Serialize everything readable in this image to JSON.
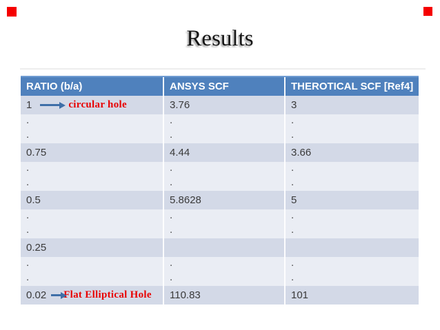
{
  "slide": {
    "title": "Results",
    "background": "#ffffff"
  },
  "markers": {
    "color": "#f50000"
  },
  "table": {
    "columns": [
      "RATIO (b/a)",
      "ANSYS SCF",
      "THEROTICAL SCF [Ref4]"
    ],
    "colors": {
      "header_bg": "#4f81bd",
      "header_text": "#ffffff",
      "band_dark": "#d3d9e7",
      "band_light": "#eaedf4",
      "cell_text": "#3a3a3a"
    },
    "annotation_color": "#e80000",
    "arrow_color": "#3e6fa8",
    "dot_char": ".",
    "rows": [
      {
        "kind": "value",
        "cells": [
          "1",
          "3.76",
          "3"
        ],
        "annotation": {
          "arrow": "long",
          "label": "circular hole"
        }
      },
      {
        "kind": "dots"
      },
      {
        "kind": "value",
        "cells": [
          "0.75",
          "4.44",
          "3.66"
        ]
      },
      {
        "kind": "dots"
      },
      {
        "kind": "value",
        "cells": [
          "0.5",
          "5.8628",
          "5"
        ]
      },
      {
        "kind": "dots"
      },
      {
        "kind": "value",
        "cells": [
          "0.25",
          "",
          ""
        ]
      },
      {
        "kind": "dots"
      },
      {
        "kind": "value",
        "cells": [
          "0.02",
          "110.83",
          "101"
        ],
        "annotation": {
          "arrow": "short",
          "label": "Flat Elliptical Hole"
        }
      }
    ]
  },
  "chart_data": {
    "type": "table",
    "title": "Results",
    "columns": [
      "RATIO (b/a)",
      "ANSYS SCF",
      "THEROTICAL SCF [Ref4]"
    ],
    "rows": [
      [
        "1 (circular hole)",
        "3.76",
        "3"
      ],
      [
        "0.75",
        "4.44",
        "3.66"
      ],
      [
        "0.5",
        "5.8628",
        "5"
      ],
      [
        "0.25",
        "",
        ""
      ],
      [
        "0.02 (Flat Elliptical Hole)",
        "110.83",
        "101"
      ]
    ]
  }
}
